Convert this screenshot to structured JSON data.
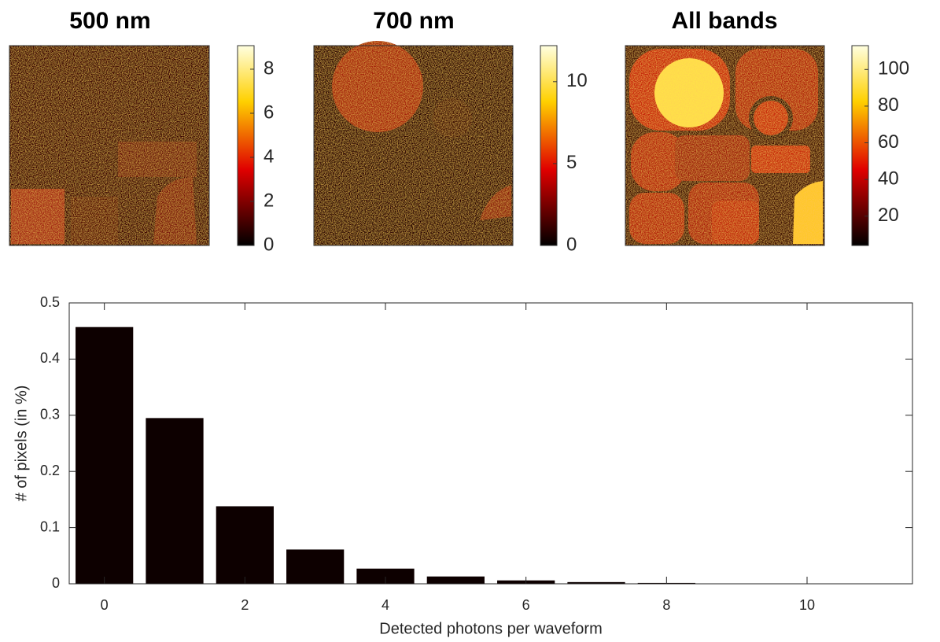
{
  "chart_data": [
    {
      "type": "image",
      "title": "500 nm",
      "clim": [
        0,
        9.07
      ],
      "cticks": [
        0,
        2,
        4,
        6,
        8
      ]
    },
    {
      "type": "image",
      "title": "700 nm",
      "clim": [
        0,
        12.2
      ],
      "cticks": [
        0,
        5,
        10
      ]
    },
    {
      "type": "image",
      "title": "All bands",
      "clim": [
        4,
        113
      ],
      "cticks": [
        20,
        40,
        60,
        80,
        100
      ]
    },
    {
      "type": "bar",
      "x": [
        0,
        1,
        2,
        3,
        4,
        5,
        6,
        7,
        8,
        9,
        10
      ],
      "values": [
        0.457,
        0.295,
        0.138,
        0.061,
        0.027,
        0.013,
        0.006,
        0.003,
        0.0015,
        0.0007,
        0.0003
      ],
      "color": "#0d0000",
      "xlim": [
        -0.5,
        11.5
      ],
      "ylim": [
        0,
        0.5
      ],
      "xticks": [
        0,
        2,
        4,
        6,
        8,
        10
      ],
      "yticks": [
        0,
        0.1,
        0.2,
        0.3,
        0.4,
        0.5
      ],
      "xlabel": "Detected photons per waveform",
      "ylabel": "# of pixels (in %)"
    }
  ]
}
